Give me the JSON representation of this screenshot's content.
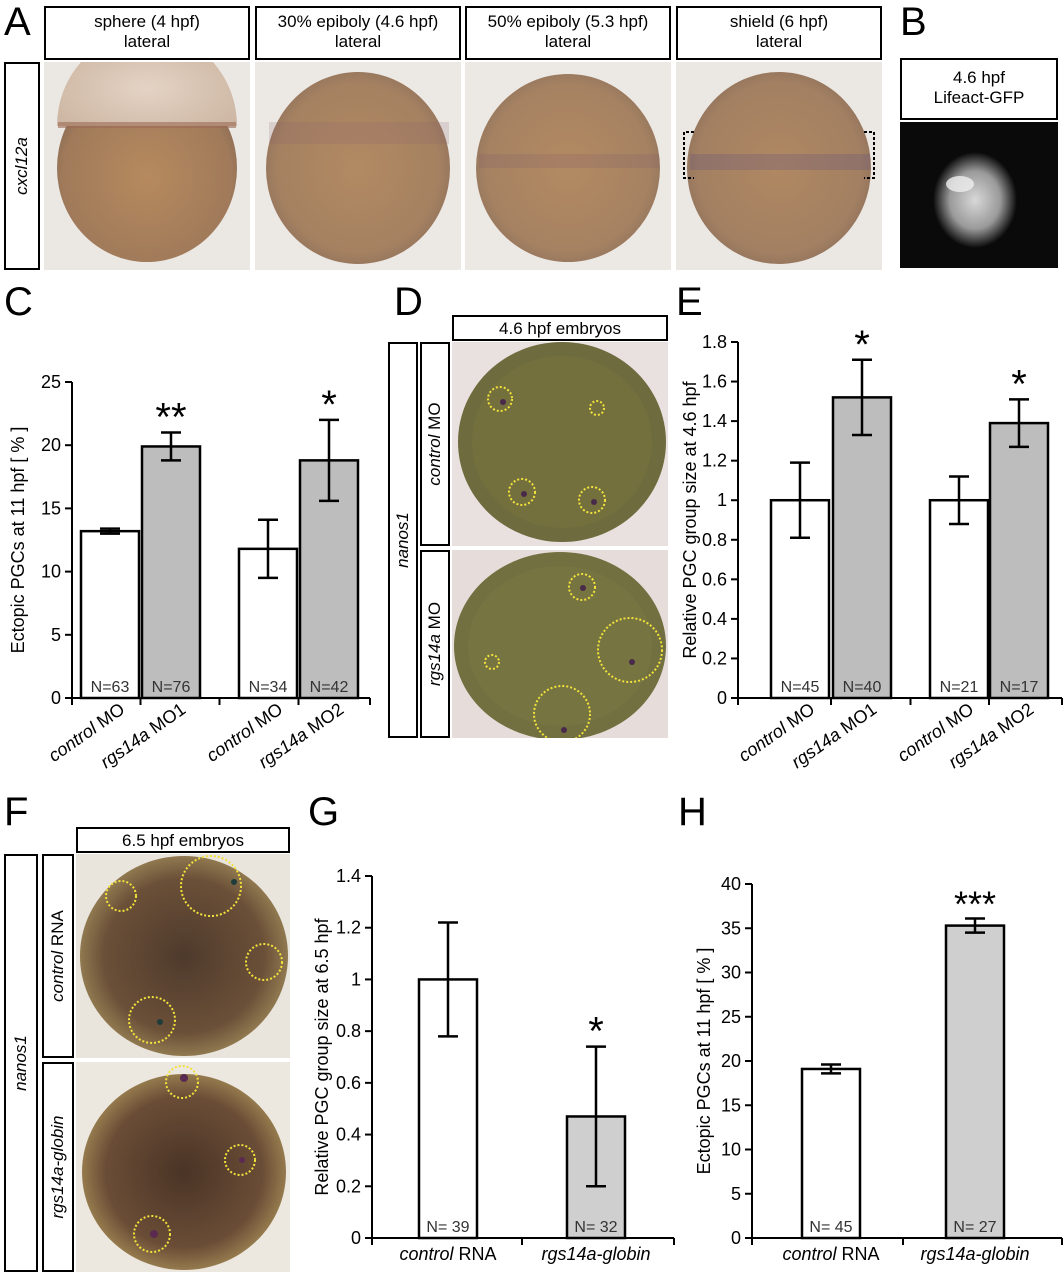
{
  "panels": {
    "A": {
      "letter": "A",
      "gene_label": "cxcl12a",
      "stages": [
        {
          "line1": "sphere (4 hpf)",
          "line2": "lateral"
        },
        {
          "line1": "30% epiboly (4.6 hpf)",
          "line2": "lateral"
        },
        {
          "line1": "50% epiboly (5.3 hpf)",
          "line2": "lateral"
        },
        {
          "line1": "shield (6 hpf)",
          "line2": "lateral"
        }
      ]
    },
    "B": {
      "letter": "B",
      "line1": "4.6 hpf",
      "line2": "Lifeact-GFP"
    },
    "D": {
      "letter": "D",
      "header": "4.6 hpf embryos",
      "gene_label": "nanos1",
      "row1_label_italic": "control",
      "row1_label_rest": " MO",
      "row2_label_italic": "rgs14a",
      "row2_label_rest": " MO"
    },
    "F": {
      "letter": "F",
      "header": "6.5 hpf embryos",
      "gene_label": "nanos1",
      "row1_label_italic": "control",
      "row1_label_rest": " RNA",
      "row2_label_italic": "rgs14a-globin",
      "row2_label_rest": ""
    }
  },
  "chart_data": [
    {
      "id": "C",
      "letter": "C",
      "type": "bar",
      "ylabel": "Ectopic PGCs at 11 hpf [ % ]",
      "ylim": [
        0,
        25
      ],
      "yticks": [
        "0",
        "5",
        "10",
        "15",
        "20",
        "25"
      ],
      "categories": [
        {
          "italic": "control",
          "rest": " MO"
        },
        {
          "italic": "rgs14a",
          "rest": " MO1"
        },
        {
          "italic": "control",
          "rest": " MO"
        },
        {
          "italic": "rgs14a",
          "rest": " MO2"
        }
      ],
      "values": [
        13.2,
        19.9,
        11.8,
        18.8
      ],
      "errors": [
        0.2,
        1.1,
        2.3,
        3.2
      ],
      "n_labels": [
        "N=63",
        "N=76",
        "N=34",
        "N=42"
      ],
      "significance": [
        "",
        "**",
        "",
        "*"
      ],
      "colors": [
        "#ffffff",
        "#bdbdbd",
        "#ffffff",
        "#bdbdbd"
      ]
    },
    {
      "id": "E",
      "letter": "E",
      "type": "bar",
      "ylabel": "Relative PGC group size at 4.6 hpf",
      "ylim": [
        0,
        1.8
      ],
      "yticks": [
        "0",
        "0.2",
        "0.4",
        "0.6",
        "0.8",
        "1",
        "1.2",
        "1.4",
        "1.6",
        "1.8"
      ],
      "categories": [
        {
          "italic": "control",
          "rest": " MO"
        },
        {
          "italic": "rgs14a",
          "rest": " MO1"
        },
        {
          "italic": "control",
          "rest": " MO"
        },
        {
          "italic": "rgs14a",
          "rest": " MO2"
        }
      ],
      "values": [
        1.0,
        1.52,
        1.0,
        1.39
      ],
      "errors": [
        0.19,
        0.19,
        0.12,
        0.12
      ],
      "n_labels": [
        "N=45",
        "N=40",
        "N=21",
        "N=17"
      ],
      "significance": [
        "",
        "*",
        "",
        "*"
      ],
      "colors": [
        "#ffffff",
        "#bdbdbd",
        "#ffffff",
        "#bdbdbd"
      ]
    },
    {
      "id": "G",
      "letter": "G",
      "type": "bar",
      "ylabel": "Relative PGC group size at 6.5 hpf",
      "ylim": [
        0,
        1.4
      ],
      "yticks": [
        "0",
        "0.2",
        "0.4",
        "0.6",
        "0.8",
        "1",
        "1.2",
        "1.4"
      ],
      "categories": [
        {
          "italic": "control",
          "rest": " RNA"
        },
        {
          "italic": "rgs14a-globin",
          "rest": ""
        }
      ],
      "values": [
        1.0,
        0.47
      ],
      "errors": [
        0.22,
        0.27
      ],
      "n_labels": [
        "N= 39",
        "N= 32"
      ],
      "significance": [
        "",
        "*"
      ],
      "colors": [
        "#ffffff",
        "#cfcfcf"
      ]
    },
    {
      "id": "H",
      "letter": "H",
      "type": "bar",
      "ylabel": "Ectopic PGCs at 11 hpf [ % ]",
      "ylim": [
        0,
        40
      ],
      "yticks": [
        "0",
        "5",
        "10",
        "15",
        "20",
        "25",
        "30",
        "35",
        "40"
      ],
      "categories": [
        {
          "italic": "control",
          "rest": " RNA"
        },
        {
          "italic": "rgs14a-globin",
          "rest": ""
        }
      ],
      "values": [
        19.1,
        35.3
      ],
      "errors": [
        0.5,
        0.8
      ],
      "n_labels": [
        "N= 45",
        "N= 27"
      ],
      "significance": [
        "",
        "***"
      ],
      "colors": [
        "#ffffff",
        "#cfcfcf"
      ]
    }
  ]
}
